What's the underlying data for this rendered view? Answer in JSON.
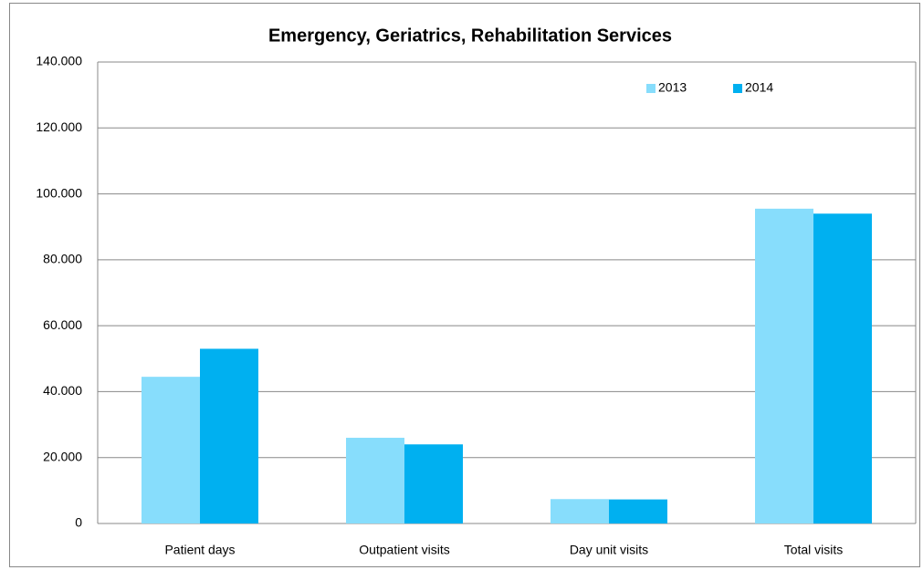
{
  "chart_data": {
    "type": "bar",
    "title": "Emergency, Geriatrics, Rehabilitation Services",
    "categories": [
      "Patient days",
      "Outpatient visits",
      "Day unit visits",
      "Total visits"
    ],
    "series": [
      {
        "name": "2013",
        "color": "#87ddfc",
        "values": [
          44500,
          26000,
          7400,
          95500
        ]
      },
      {
        "name": "2014",
        "color": "#00b0f0",
        "values": [
          53000,
          24000,
          7300,
          94000
        ]
      }
    ],
    "ylim": [
      0,
      140000
    ],
    "yticks": [
      0,
      {
        "value": 20000,
        "label": "20.000"
      },
      {
        "value": 40000,
        "label": "40.000"
      },
      {
        "value": 60000,
        "label": "60.000"
      },
      {
        "value": 80000,
        "label": "80.000"
      },
      {
        "value": 100000,
        "label": "100.000"
      },
      {
        "value": 120000,
        "label": "120.000"
      },
      {
        "value": 140000,
        "label": "140.000"
      }
    ],
    "grid": true,
    "legend": "top-right"
  }
}
